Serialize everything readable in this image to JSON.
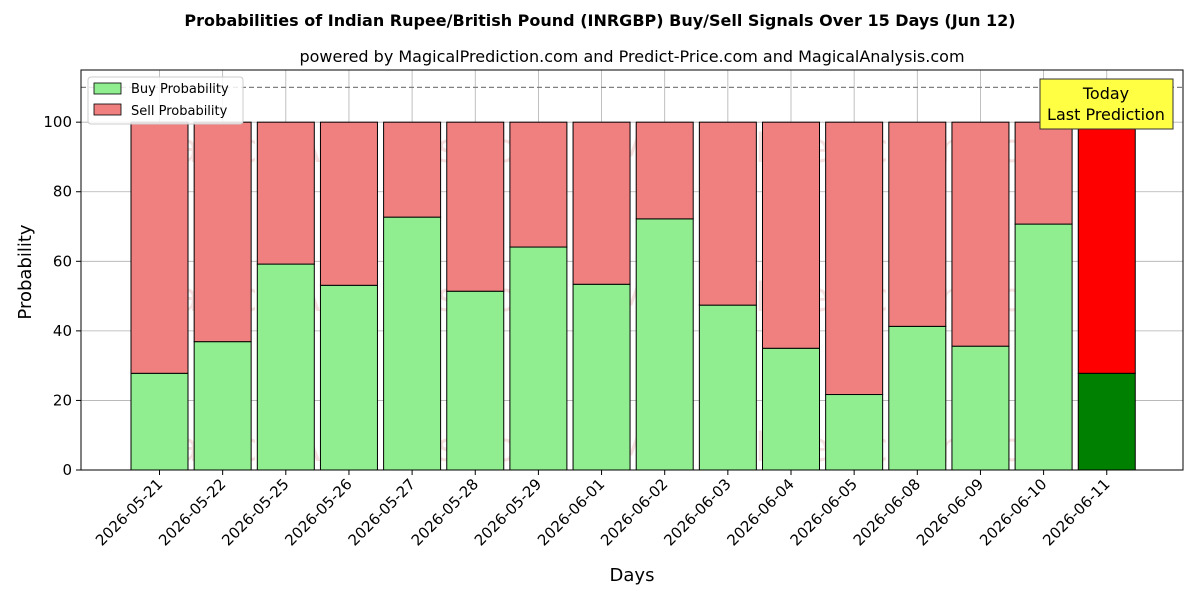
{
  "chart_data": {
    "type": "bar",
    "stacked": true,
    "title": "Probabilities of Indian Rupee/British Pound (INRGBP) Buy/Sell Signals Over 15 Days (Jun 12)",
    "subtitle": "powered by MagicalPrediction.com and Predict-Price.com and MagicalAnalysis.com",
    "xlabel": "Days",
    "ylabel": "Probability",
    "ylim": [
      0,
      115
    ],
    "yticks": [
      0,
      20,
      40,
      60,
      80,
      100
    ],
    "grid": true,
    "reference_line": 110,
    "legend_position": "top-left",
    "categories": [
      "2026-05-21",
      "2026-05-22",
      "2026-05-25",
      "2026-05-26",
      "2026-05-27",
      "2026-05-28",
      "2026-05-29",
      "2026-06-01",
      "2026-06-02",
      "2026-06-03",
      "2026-06-04",
      "2026-06-05",
      "2026-06-08",
      "2026-06-09",
      "2026-06-10",
      "2026-06-11"
    ],
    "series": [
      {
        "name": "Buy Probability",
        "color": "#90ee90",
        "highlight_color": "#008000",
        "values": [
          27.8,
          36.9,
          59.2,
          53.1,
          72.7,
          51.4,
          64.1,
          53.4,
          72.2,
          47.4,
          35.0,
          21.7,
          41.3,
          35.6,
          70.7,
          27.8
        ]
      },
      {
        "name": "Sell Probability",
        "color": "#f08080",
        "highlight_color": "#ff0000",
        "values": [
          72.2,
          63.1,
          40.8,
          46.9,
          27.3,
          48.6,
          35.9,
          46.6,
          27.8,
          52.6,
          65.0,
          78.3,
          58.7,
          64.4,
          29.3,
          72.2
        ]
      }
    ],
    "highlight_index": 15,
    "annotation": {
      "line1": "Today",
      "line2": "Last Prediction",
      "color": "#ffff44"
    },
    "watermarks": [
      "MagicalAnalysis.com",
      "MagicalPrediction.com"
    ]
  }
}
